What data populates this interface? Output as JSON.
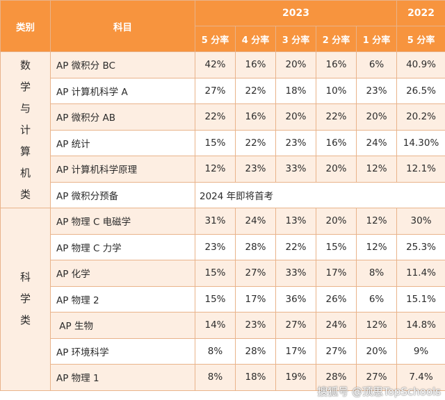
{
  "header": {
    "category": "类别",
    "subject": "科目",
    "year_2023": "2023",
    "year_2022": "2022",
    "rates_2023": [
      "5 分率",
      "4 分率",
      "3 分率",
      "2 分率",
      "1 分率"
    ],
    "rate_2022": "5 分率"
  },
  "groups": [
    {
      "category": "数\n学\n与\n计\n算\n机\n类",
      "rows": [
        {
          "subject": "AP 微积分 BC",
          "r5": "42%",
          "r4": "16%",
          "r3": "20%",
          "r2": "16%",
          "r1": "6%",
          "p5_2022": "40.9%"
        },
        {
          "subject": "AP 计算机科学 A",
          "r5": "27%",
          "r4": "22%",
          "r3": "18%",
          "r2": "10%",
          "r1": "23%",
          "p5_2022": "26.5%"
        },
        {
          "subject": "AP 微积分 AB",
          "r5": "22%",
          "r4": "16%",
          "r3": "20%",
          "r2": "22%",
          "r1": "20%",
          "p5_2022": "20.2%"
        },
        {
          "subject": "AP 统计",
          "r5": "15%",
          "r4": "22%",
          "r3": "23%",
          "r2": "16%",
          "r1": "24%",
          "p5_2022": "14.30%"
        },
        {
          "subject": "AP 计算机科学原理",
          "r5": "12%",
          "r4": "23%",
          "r3": "33%",
          "r2": "20%",
          "r1": "12%",
          "p5_2022": "12.1%"
        },
        {
          "subject": "AP 微积分预备",
          "note": "2024 年即将首考"
        }
      ]
    },
    {
      "category": "科\n学\n类",
      "rows": [
        {
          "subject": "AP 物理 C 电磁学",
          "r5": "31%",
          "r4": "24%",
          "r3": "13%",
          "r2": "20%",
          "r1": "12%",
          "p5_2022": "30%"
        },
        {
          "subject": "AP 物理 C 力学",
          "r5": "23%",
          "r4": "28%",
          "r3": "22%",
          "r2": "15%",
          "r1": "12%",
          "p5_2022": "25.3%"
        },
        {
          "subject": "AP 化学",
          "r5": "15%",
          "r4": "27%",
          "r3": "33%",
          "r2": "17%",
          "r1": "8%",
          "p5_2022": "11.4%"
        },
        {
          "subject": "AP 物理 2",
          "r5": "15%",
          "r4": "17%",
          "r3": "36%",
          "r2": "26%",
          "r1": "6%",
          "p5_2022": "15.1%"
        },
        {
          "subject": " AP 生物",
          "r5": "14%",
          "r4": "23%",
          "r3": "27%",
          "r2": "24%",
          "r1": "12%",
          "p5_2022": "14.8%"
        },
        {
          "subject": "AP 环境科学",
          "r5": "8%",
          "r4": "28%",
          "r3": "17%",
          "r2": "27%",
          "r1": "20%",
          "p5_2022": "9%"
        },
        {
          "subject": "AP 物理 1",
          "r5": "8%",
          "r4": "18%",
          "r3": "19%",
          "r2": "28%",
          "r1": "27%",
          "p5_2022": "7.4%"
        }
      ]
    }
  ],
  "watermark": "搜狐号 @顶思TopSchools",
  "colors": {
    "header_bg": "#f7943e",
    "row_tint": "#fdeee2",
    "border": "#e9b38a"
  }
}
